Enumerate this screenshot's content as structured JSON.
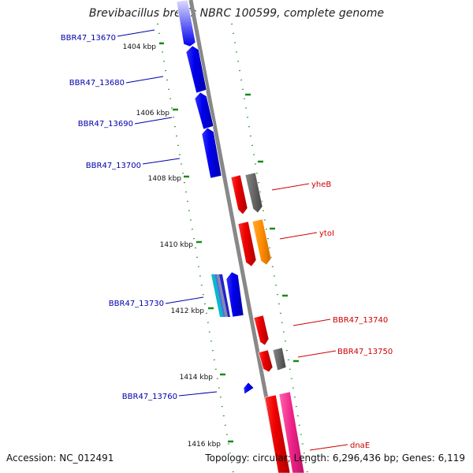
{
  "title": "Brevibacillus brevis NBRC 100599, complete genome",
  "footer": {
    "accession": "Accession: NC_012491",
    "summary": "Topology: circular; Length: 6,296,436 bp; Genes: 6,119"
  },
  "colors": {
    "backbone": "#888888",
    "tick": "#1a8a1a",
    "label_left": "#0000aa",
    "label_right": "#cc0000",
    "gene_blue": "#0000ee",
    "gene_red": "#ee0000",
    "gene_gray": "#666666",
    "gene_orange": "#ff8c00",
    "gene_pink": "#ee2288",
    "gene_cyan": "#00bbcc"
  },
  "kbp_ticks": [
    "1404 kbp",
    "1406 kbp",
    "1408 kbp",
    "1410 kbp",
    "1412 kbp",
    "1414 kbp",
    "1416 kbp"
  ],
  "genes_left": [
    {
      "label": "BBR47_13670",
      "color": "gene_blue"
    },
    {
      "label": "BBR47_13680",
      "color": "gene_blue"
    },
    {
      "label": "BBR47_13690",
      "color": "gene_blue"
    },
    {
      "label": "BBR47_13700",
      "color": "gene_blue"
    },
    {
      "label": "BBR47_13730",
      "color": "gene_blue"
    },
    {
      "label": "BBR47_13760",
      "color": "gene_blue"
    }
  ],
  "genes_right": [
    {
      "label": "yheB",
      "color": "gene_red"
    },
    {
      "label": "ytoI",
      "color": "gene_orange"
    },
    {
      "label": "BBR47_13740",
      "color": "gene_red"
    },
    {
      "label": "BBR47_13750",
      "color": "gene_red"
    },
    {
      "label": "dnaE",
      "color": "gene_pink"
    }
  ]
}
